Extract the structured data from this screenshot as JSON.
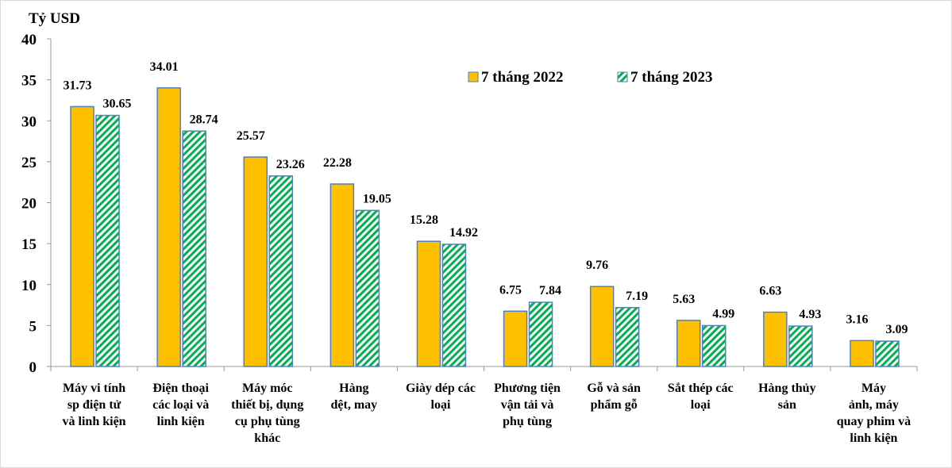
{
  "chart_data": {
    "type": "bar",
    "title": "",
    "ylabel": "Tỷ USD",
    "xlabel": "",
    "ylim": [
      0,
      40
    ],
    "yticks": [
      0,
      5,
      10,
      15,
      20,
      25,
      30,
      35,
      40
    ],
    "grid": false,
    "legend_position": "top-right inside",
    "categories": [
      [
        "Máy vi tính",
        "sp  điện tử",
        "và linh kiện"
      ],
      [
        "Điện thoại",
        "các loại và",
        "linh kiện"
      ],
      [
        "Máy móc",
        "thiết bị, dụng",
        "cụ phụ tùng",
        "khác"
      ],
      [
        "Hàng",
        "dệt, may"
      ],
      [
        "Giày dép  các",
        "loại"
      ],
      [
        "Phương tiện",
        "vận tải và",
        "phụ tùng"
      ],
      [
        "Gỗ và sản",
        "phẩm gỗ"
      ],
      [
        "Sắt thép  các",
        "loại"
      ],
      [
        "Hàng thủy",
        "sản"
      ],
      [
        "Máy",
        "ảnh, máy",
        "quay phim và",
        "linh kiện"
      ]
    ],
    "series": [
      {
        "name": "7 tháng 2022",
        "color": "#FFC000",
        "pattern": "solid",
        "values": [
          31.73,
          34.01,
          25.57,
          22.28,
          15.28,
          6.75,
          9.76,
          5.63,
          6.63,
          3.16
        ]
      },
      {
        "name": "7 tháng 2023",
        "color": "#00B050",
        "pattern": "diagonal-stripes",
        "values": [
          30.65,
          28.74,
          23.26,
          19.05,
          14.92,
          7.84,
          7.19,
          4.99,
          4.93,
          3.09
        ]
      }
    ],
    "bar_border_color": "#4F81BD"
  }
}
